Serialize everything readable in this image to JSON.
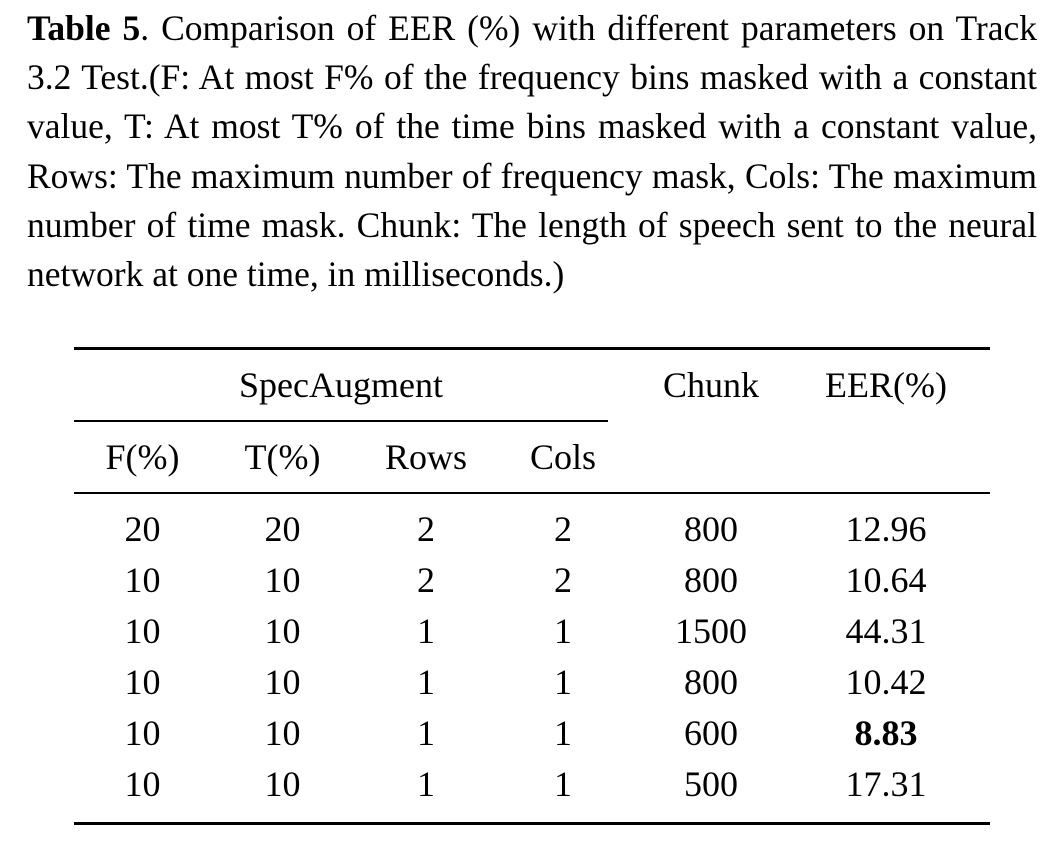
{
  "caption": {
    "label": "Table 5",
    "text": ". Comparison of EER (%) with different parameters on Track 3.2 Test.(F: At most F% of the frequency bins masked with a constant value, T: At most T% of the time bins masked with a constant value, Rows: The maximum number of frequency mask, Cols: The maximum number of time mask. Chunk: The length of speech sent to the neural network at one time, in milliseconds.)"
  },
  "table": {
    "group_header": "SpecAugment",
    "headers": {
      "f": "F(%)",
      "t": "T(%)",
      "rows": "Rows",
      "cols": "Cols",
      "chunk": "Chunk",
      "eer": "EER(%)"
    },
    "rows": [
      {
        "f": "20",
        "t": "20",
        "rows": "2",
        "cols": "2",
        "chunk": "800",
        "eer": "12.96"
      },
      {
        "f": "10",
        "t": "10",
        "rows": "2",
        "cols": "2",
        "chunk": "800",
        "eer": "10.64"
      },
      {
        "f": "10",
        "t": "10",
        "rows": "1",
        "cols": "1",
        "chunk": "1500",
        "eer": "44.31"
      },
      {
        "f": "10",
        "t": "10",
        "rows": "1",
        "cols": "1",
        "chunk": "800",
        "eer": "10.42"
      },
      {
        "f": "10",
        "t": "10",
        "rows": "1",
        "cols": "1",
        "chunk": "600",
        "eer": "8.83"
      },
      {
        "f": "10",
        "t": "10",
        "rows": "1",
        "cols": "1",
        "chunk": "500",
        "eer": "17.31"
      }
    ]
  }
}
